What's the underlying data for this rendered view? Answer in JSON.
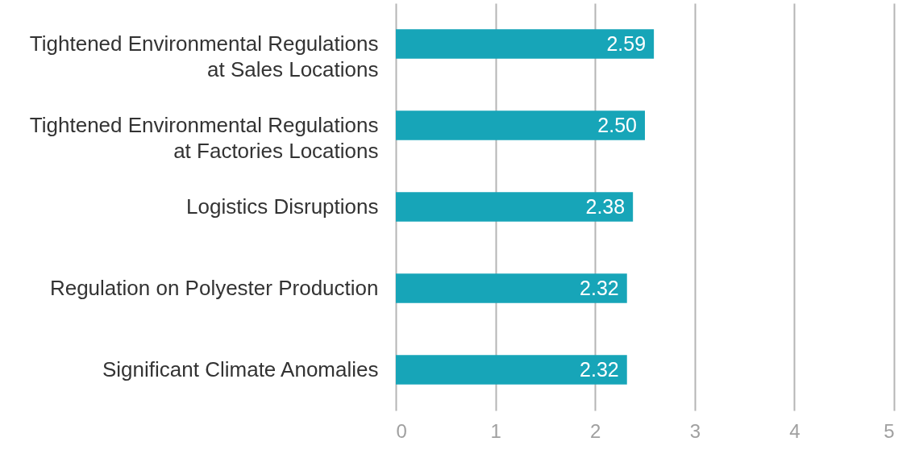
{
  "chart_data": {
    "type": "bar",
    "orientation": "horizontal",
    "categories": [
      "Tightened Environmental Regulations\nat Sales Locations",
      "Tightened Environmental Regulations\nat Factories Locations",
      "Logistics Disruptions",
      "Regulation on Polyester Production",
      "Significant Climate Anomalies"
    ],
    "values": [
      2.59,
      2.5,
      2.38,
      2.32,
      2.32
    ],
    "value_labels": [
      "2.59",
      "2.50",
      "2.38",
      "2.32",
      "2.32"
    ],
    "color": "#17a5b8",
    "xlim": [
      0,
      5
    ],
    "xticks": [
      0,
      1,
      2,
      3,
      4,
      5
    ],
    "grid": "x"
  }
}
